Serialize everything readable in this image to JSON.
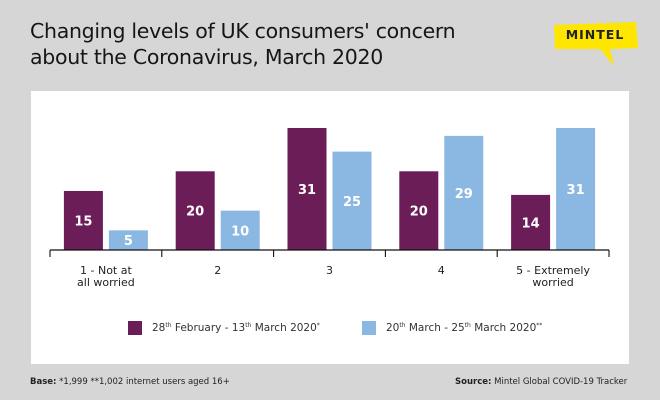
{
  "header": {
    "title_line1": "Changing levels of UK consumers' concern",
    "title_line2": "about the Coronavirus, March 2020",
    "logo_text": "MINTEL",
    "logo_color": "#ffe600"
  },
  "legend": [
    {
      "prefix": "28",
      "sup1": "th",
      "mid": " February - 13",
      "sup2": "th",
      "suffix": " March 2020",
      "mark": "*",
      "color": "#6b1d57"
    },
    {
      "prefix": "20",
      "sup1": "th",
      "mid": " March - 25",
      "sup2": "th",
      "suffix": " March 2020",
      "mark": "**",
      "color": "#8ab8e2"
    }
  ],
  "footer": {
    "base_label": "Base:",
    "base_text": " *1,999   **1,002 internet users aged 16+",
    "source_label": "Source:",
    "source_text": " Mintel Global COVID-19 Tracker"
  },
  "chart_data": {
    "type": "bar",
    "title": "Changing levels of UK consumers' concern about the Coronavirus, March 2020",
    "xlabel": "",
    "ylabel": "",
    "unit": "%",
    "ylim": [
      0,
      31
    ],
    "grid": false,
    "legend_position": "bottom",
    "categories": [
      [
        "1 - Not at",
        "all worried"
      ],
      [
        "2"
      ],
      [
        "3"
      ],
      [
        "4"
      ],
      [
        "5 - Extremely",
        "worried"
      ]
    ],
    "series": [
      {
        "name": "28th February - 13th March 2020*",
        "color": "#6b1d57",
        "values": [
          15,
          20,
          31,
          20,
          14
        ]
      },
      {
        "name": "20th March - 25th March 2020**",
        "color": "#8ab8e2",
        "values": [
          5,
          10,
          25,
          29,
          31
        ]
      }
    ]
  }
}
